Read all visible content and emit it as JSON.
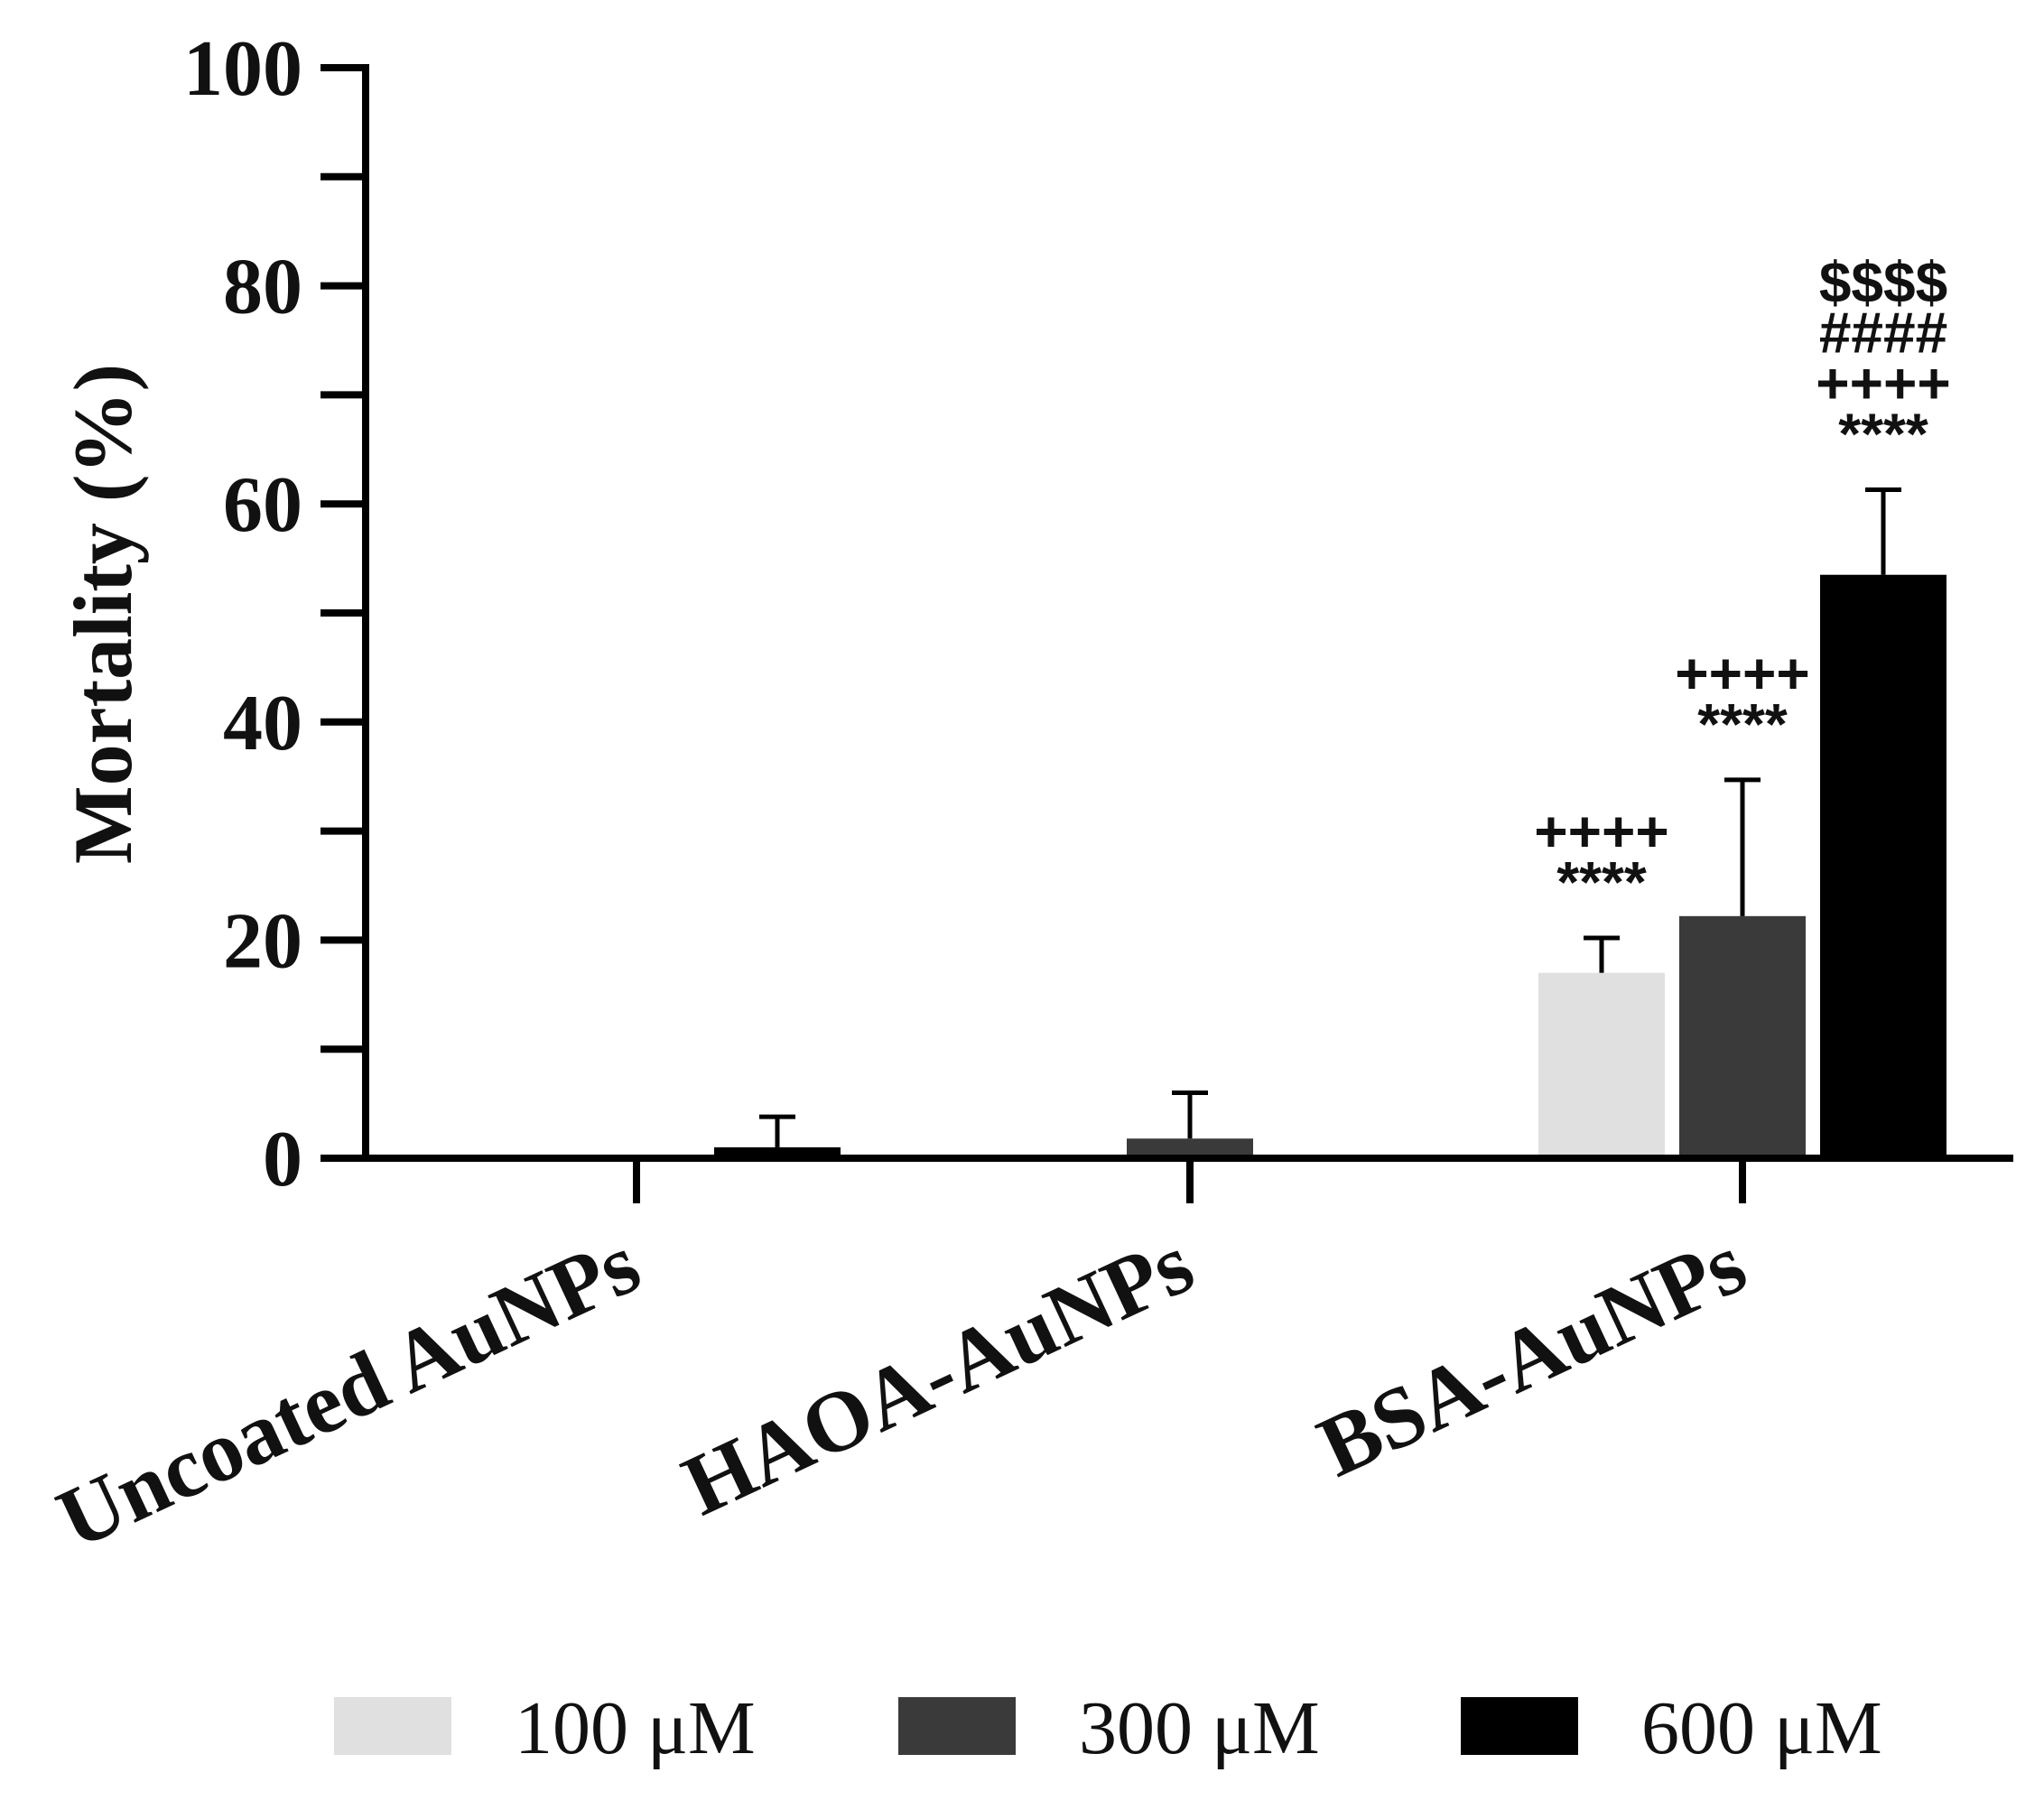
{
  "chart_data": {
    "type": "bar",
    "title": "",
    "xlabel": "",
    "ylabel": "Mortality (%)",
    "ylim": [
      0,
      100
    ],
    "yticks": [
      0,
      20,
      40,
      60,
      80,
      100
    ],
    "ytick_labels": [
      "0",
      "20",
      "40",
      "60",
      "80",
      "100"
    ],
    "categories": [
      "Uncoated AuNPs",
      "HAOA-AuNPs",
      "BSA-AuNPs"
    ],
    "legend_position": "bottom",
    "series": [
      {
        "name": "100 μM",
        "color": "#e0e0e0",
        "values": [
          0,
          0,
          17.0
        ],
        "errors": [
          0,
          0,
          3.2
        ]
      },
      {
        "name": "300 μM",
        "color": "#3a3a3a",
        "values": [
          0,
          1.8,
          22.2
        ],
        "errors": [
          0,
          4.2,
          12.5
        ]
      },
      {
        "name": "600 μM",
        "color": "#000000",
        "values": [
          1.0,
          0,
          53.5
        ],
        "errors": [
          2.8,
          0,
          7.8
        ]
      }
    ],
    "annotations": [
      {
        "category": 2,
        "series": 0,
        "lines": [
          "++++",
          "****"
        ]
      },
      {
        "category": 2,
        "series": 1,
        "lines": [
          "++++",
          "****"
        ]
      },
      {
        "category": 2,
        "series": 2,
        "lines": [
          "$$$$",
          "####",
          "++++",
          "****"
        ]
      }
    ]
  }
}
